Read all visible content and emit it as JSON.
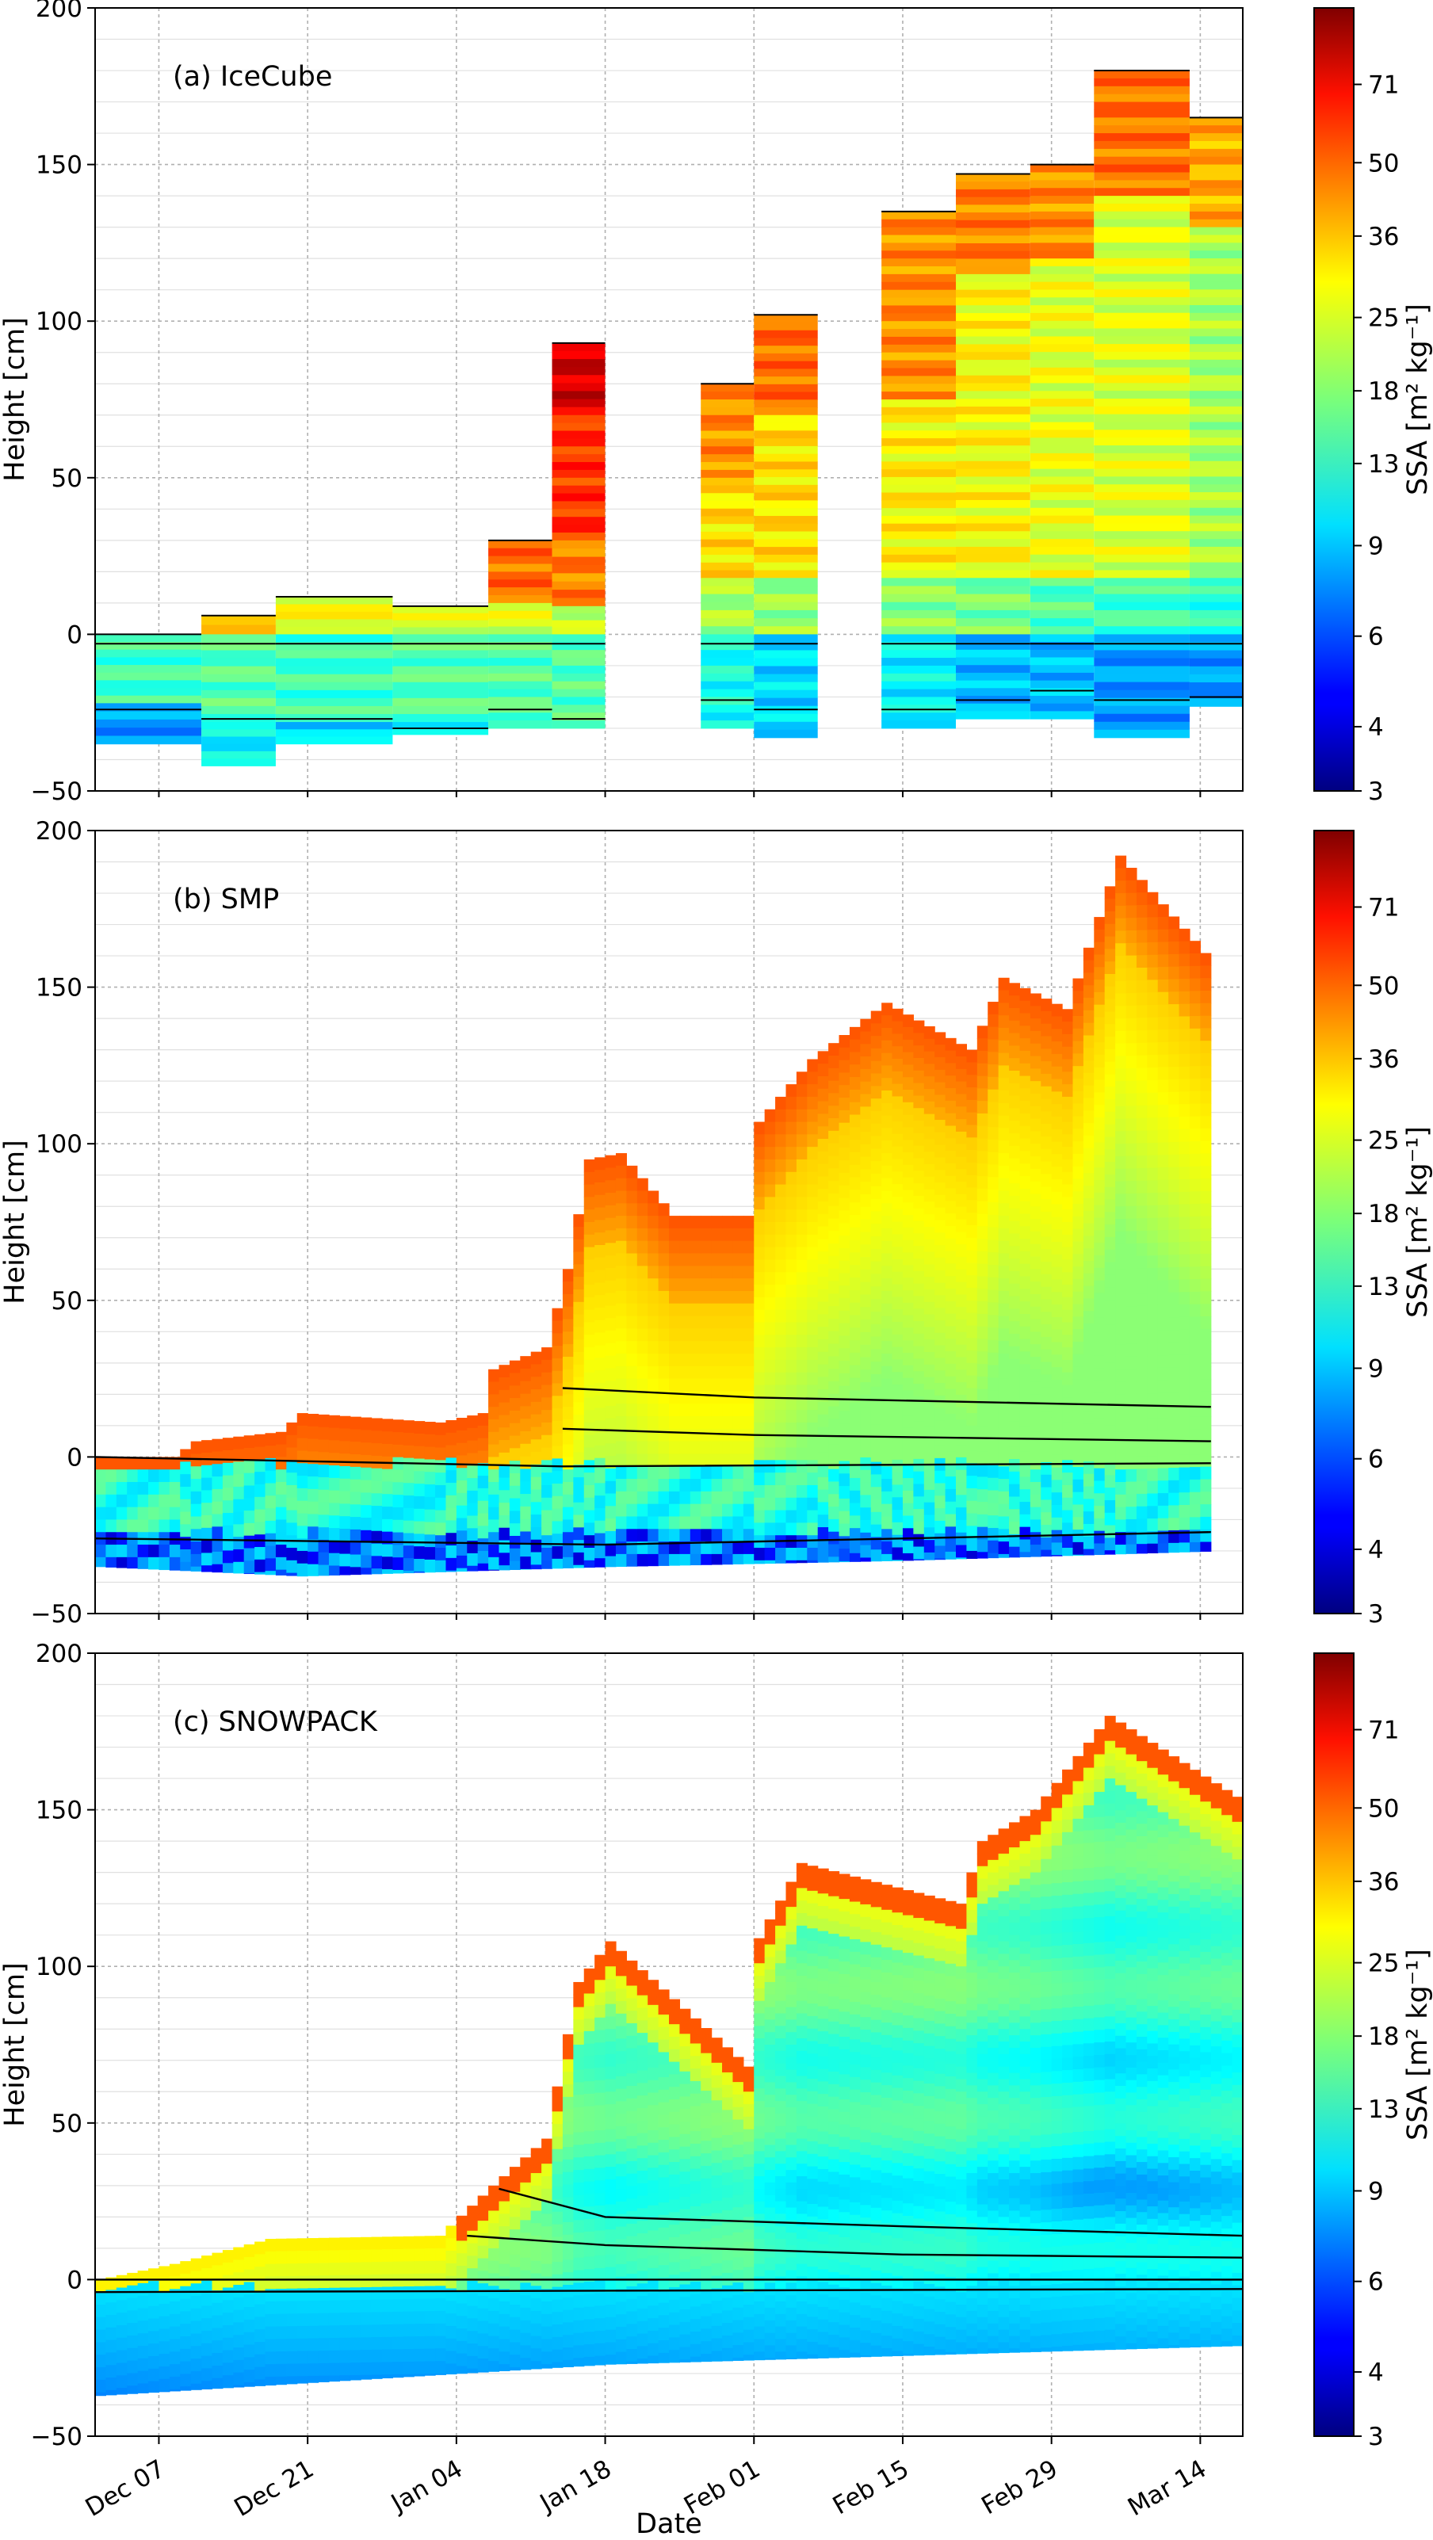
{
  "chart_data": [
    {
      "type": "heatmap",
      "panel_label": "(a) IceCube",
      "xlabel": "",
      "ylabel": "Height [cm]",
      "ylim": [
        -50,
        200
      ],
      "yticks": [
        "200",
        "150",
        "100",
        "50",
        "0",
        "−50"
      ],
      "colorbar_label": "SSA [m² kg⁻¹]",
      "colorbar_ticks": [
        "71",
        "50",
        "36",
        "25",
        "18",
        "13",
        "9",
        "6",
        "4",
        "3"
      ],
      "grid": true,
      "columns": [
        {
          "start": "2019-12-01",
          "end": "2019-12-11",
          "top": 0,
          "bottom": -35,
          "layers": [
            {
              "from": 0,
              "to": -22,
              "ssa": 14
            },
            {
              "from": -22,
              "to": -35,
              "ssa": 8
            }
          ],
          "horizons": [
            -3,
            -24
          ]
        },
        {
          "start": "2019-12-11",
          "end": "2019-12-18",
          "top": 6,
          "bottom": -42,
          "layers": [
            {
              "from": 6,
              "to": 0,
              "ssa": 30
            },
            {
              "from": 0,
              "to": -28,
              "ssa": 15
            },
            {
              "from": -28,
              "to": -42,
              "ssa": 11
            }
          ],
          "horizons": [
            -3,
            -27
          ]
        },
        {
          "start": "2019-12-18",
          "end": "2019-12-29",
          "top": 12,
          "bottom": -35,
          "layers": [
            {
              "from": 12,
              "to": 0,
              "ssa": 26
            },
            {
              "from": 0,
              "to": -28,
              "ssa": 14
            },
            {
              "from": -28,
              "to": -35,
              "ssa": 10
            }
          ],
          "horizons": [
            -3,
            -27
          ]
        },
        {
          "start": "2019-12-29",
          "end": "2020-01-07",
          "top": 9,
          "bottom": -32,
          "layers": [
            {
              "from": 9,
              "to": 0,
              "ssa": 24
            },
            {
              "from": 0,
              "to": -28,
              "ssa": 15
            },
            {
              "from": -28,
              "to": -32,
              "ssa": 10
            }
          ],
          "horizons": [
            -3,
            -30
          ]
        },
        {
          "start": "2020-01-07",
          "end": "2020-01-13",
          "top": 30,
          "bottom": -30,
          "layers": [
            {
              "from": 30,
              "to": 10,
              "ssa": 45
            },
            {
              "from": 10,
              "to": 0,
              "ssa": 24
            },
            {
              "from": 0,
              "to": -30,
              "ssa": 15
            }
          ],
          "horizons": [
            -3,
            -24
          ]
        },
        {
          "start": "2020-01-13",
          "end": "2020-01-18",
          "top": 93,
          "bottom": -30,
          "layers": [
            {
              "from": 93,
              "to": 70,
              "ssa": 75
            },
            {
              "from": 70,
              "to": 30,
              "ssa": 55
            },
            {
              "from": 30,
              "to": 9,
              "ssa": 42
            },
            {
              "from": 9,
              "to": 0,
              "ssa": 22
            },
            {
              "from": 0,
              "to": -30,
              "ssa": 15
            }
          ],
          "horizons": [
            -3,
            -27
          ]
        },
        {
          "start": "2020-01-27",
          "end": "2020-02-01",
          "top": 80,
          "bottom": -30,
          "layers": [
            {
              "from": 80,
              "to": 50,
              "ssa": 40
            },
            {
              "from": 50,
              "to": 18,
              "ssa": 30
            },
            {
              "from": 18,
              "to": 0,
              "ssa": 20
            },
            {
              "from": 0,
              "to": -30,
              "ssa": 12
            }
          ],
          "horizons": [
            -3,
            -21
          ]
        },
        {
          "start": "2020-02-01",
          "end": "2020-02-07",
          "top": 102,
          "bottom": -33,
          "layers": [
            {
              "from": 102,
              "to": 70,
              "ssa": 45
            },
            {
              "from": 70,
              "to": 18,
              "ssa": 30
            },
            {
              "from": 18,
              "to": 0,
              "ssa": 19
            },
            {
              "from": 0,
              "to": -33,
              "ssa": 10
            }
          ],
          "horizons": [
            -3,
            -24
          ]
        },
        {
          "start": "2020-02-13",
          "end": "2020-02-20",
          "top": 135,
          "bottom": -30,
          "layers": [
            {
              "from": 135,
              "to": 75,
              "ssa": 40
            },
            {
              "from": 75,
              "to": 18,
              "ssa": 28
            },
            {
              "from": 18,
              "to": 0,
              "ssa": 18
            },
            {
              "from": 0,
              "to": -30,
              "ssa": 11
            }
          ],
          "horizons": [
            -3,
            -24
          ]
        },
        {
          "start": "2020-02-20",
          "end": "2020-02-27",
          "top": 147,
          "bottom": -27,
          "layers": [
            {
              "from": 147,
              "to": 115,
              "ssa": 42
            },
            {
              "from": 115,
              "to": 18,
              "ssa": 27
            },
            {
              "from": 18,
              "to": 0,
              "ssa": 17
            },
            {
              "from": 0,
              "to": -27,
              "ssa": 9
            }
          ],
          "horizons": [
            -3,
            -21
          ]
        },
        {
          "start": "2020-02-27",
          "end": "2020-03-04",
          "top": 150,
          "bottom": -27,
          "layers": [
            {
              "from": 150,
              "to": 120,
              "ssa": 40
            },
            {
              "from": 120,
              "to": 18,
              "ssa": 25
            },
            {
              "from": 18,
              "to": 0,
              "ssa": 15
            },
            {
              "from": 0,
              "to": -27,
              "ssa": 9
            }
          ],
          "horizons": [
            -3,
            -18
          ]
        },
        {
          "start": "2020-03-04",
          "end": "2020-03-13",
          "top": 180,
          "bottom": -33,
          "layers": [
            {
              "from": 180,
              "to": 140,
              "ssa": 44
            },
            {
              "from": 140,
              "to": 18,
              "ssa": 24
            },
            {
              "from": 18,
              "to": 0,
              "ssa": 14
            },
            {
              "from": 0,
              "to": -33,
              "ssa": 8
            }
          ],
          "horizons": [
            -3,
            -21
          ]
        },
        {
          "start": "2020-03-13",
          "end": "2020-03-18",
          "top": 165,
          "bottom": -23,
          "layers": [
            {
              "from": 165,
              "to": 130,
              "ssa": 36
            },
            {
              "from": 130,
              "to": 18,
              "ssa": 20
            },
            {
              "from": 18,
              "to": 0,
              "ssa": 13
            },
            {
              "from": 0,
              "to": -23,
              "ssa": 8
            }
          ],
          "horizons": [
            -3,
            -20
          ]
        }
      ]
    },
    {
      "type": "heatmap",
      "panel_label": "(b) SMP",
      "xlabel": "",
      "ylabel": "Height [cm]",
      "ylim": [
        -50,
        200
      ],
      "yticks": [
        "200",
        "150",
        "100",
        "50",
        "0",
        "−50"
      ],
      "colorbar_label": "SSA [m² kg⁻¹]",
      "colorbar_ticks": [
        "71",
        "50",
        "36",
        "25",
        "18",
        "13",
        "9",
        "6",
        "4",
        "3"
      ],
      "grid": true,
      "surface_profile": [
        {
          "date": "2019-12-01",
          "height": 0
        },
        {
          "date": "2019-12-08",
          "height": 0
        },
        {
          "date": "2019-12-10",
          "height": 5
        },
        {
          "date": "2019-12-18",
          "height": 8
        },
        {
          "date": "2019-12-20",
          "height": 14
        },
        {
          "date": "2020-01-02",
          "height": 11
        },
        {
          "date": "2020-01-06",
          "height": 14
        },
        {
          "date": "2020-01-07",
          "height": 28
        },
        {
          "date": "2020-01-12",
          "height": 35
        },
        {
          "date": "2020-01-14",
          "height": 60
        },
        {
          "date": "2020-01-16",
          "height": 95
        },
        {
          "date": "2020-01-19",
          "height": 97
        },
        {
          "date": "2020-01-24",
          "height": 77
        },
        {
          "date": "2020-01-31",
          "height": 77
        },
        {
          "date": "2020-02-01",
          "height": 107
        },
        {
          "date": "2020-02-06",
          "height": 127
        },
        {
          "date": "2020-02-13",
          "height": 145
        },
        {
          "date": "2020-02-21",
          "height": 130
        },
        {
          "date": "2020-02-24",
          "height": 153
        },
        {
          "date": "2020-03-01",
          "height": 143
        },
        {
          "date": "2020-03-06",
          "height": 192
        },
        {
          "date": "2020-03-15",
          "height": 157
        }
      ],
      "bottom_profile": [
        {
          "date": "2019-12-01",
          "depth": -35
        },
        {
          "date": "2019-12-20",
          "depth": -38
        },
        {
          "date": "2020-01-18",
          "depth": -35
        },
        {
          "date": "2020-02-15",
          "depth": -33
        },
        {
          "date": "2020-03-15",
          "depth": -30
        }
      ],
      "horizons": [
        {
          "name": "upper",
          "points": [
            {
              "date": "2020-01-14",
              "height": 22
            },
            {
              "date": "2020-02-01",
              "height": 19
            },
            {
              "date": "2020-03-15",
              "height": 16
            }
          ]
        },
        {
          "name": "middle",
          "points": [
            {
              "date": "2020-01-14",
              "height": 9
            },
            {
              "date": "2020-02-01",
              "height": 7
            },
            {
              "date": "2020-03-15",
              "height": 5
            }
          ]
        },
        {
          "name": "surface-0",
          "points": [
            {
              "date": "2019-12-01",
              "height": 0
            },
            {
              "date": "2020-01-14",
              "height": -3
            },
            {
              "date": "2020-03-15",
              "height": -2
            }
          ]
        },
        {
          "name": "lower",
          "points": [
            {
              "date": "2019-12-01",
              "height": -26
            },
            {
              "date": "2020-01-18",
              "height": -28
            },
            {
              "date": "2020-03-15",
              "height": -24
            }
          ]
        }
      ]
    },
    {
      "type": "heatmap",
      "panel_label": "(c) SNOWPACK",
      "xlabel": "Date",
      "ylabel": "Height [cm]",
      "ylim": [
        -50,
        200
      ],
      "yticks": [
        "200",
        "150",
        "100",
        "50",
        "0",
        "−50"
      ],
      "xticks": [
        "Dec 07",
        "Dec 21",
        "Jan 04",
        "Jan 18",
        "Feb 01",
        "Feb 15",
        "Feb 29",
        "Mar 14"
      ],
      "colorbar_label": "SSA [m² kg⁻¹]",
      "colorbar_ticks": [
        "71",
        "50",
        "36",
        "25",
        "18",
        "13",
        "9",
        "6",
        "4",
        "3"
      ],
      "grid": true,
      "surface_profile": [
        {
          "date": "2019-12-01",
          "height": 0
        },
        {
          "date": "2019-12-08",
          "height": 5
        },
        {
          "date": "2019-12-17",
          "height": 13
        },
        {
          "date": "2020-01-02",
          "height": 14
        },
        {
          "date": "2020-01-07",
          "height": 30
        },
        {
          "date": "2020-01-12",
          "height": 45
        },
        {
          "date": "2020-01-15",
          "height": 95
        },
        {
          "date": "2020-01-18",
          "height": 108
        },
        {
          "date": "2020-01-31",
          "height": 68
        },
        {
          "date": "2020-02-01",
          "height": 109
        },
        {
          "date": "2020-02-05",
          "height": 133
        },
        {
          "date": "2020-02-20",
          "height": 120
        },
        {
          "date": "2020-02-22",
          "height": 140
        },
        {
          "date": "2020-02-27",
          "height": 150
        },
        {
          "date": "2020-03-05",
          "height": 180
        },
        {
          "date": "2020-03-18",
          "height": 152
        }
      ],
      "bottom_profile": [
        {
          "date": "2019-12-01",
          "depth": -37
        },
        {
          "date": "2020-01-18",
          "depth": -27
        },
        {
          "date": "2020-03-18",
          "depth": -21
        }
      ],
      "horizons": [
        {
          "name": "upper",
          "points": [
            {
              "date": "2020-01-08",
              "height": 29
            },
            {
              "date": "2020-01-18",
              "height": 20
            },
            {
              "date": "2020-02-15",
              "height": 17
            },
            {
              "date": "2020-03-18",
              "height": 14
            }
          ]
        },
        {
          "name": "middle",
          "points": [
            {
              "date": "2020-01-05",
              "height": 14
            },
            {
              "date": "2020-01-18",
              "height": 11
            },
            {
              "date": "2020-02-15",
              "height": 8
            },
            {
              "date": "2020-03-18",
              "height": 7
            }
          ]
        },
        {
          "name": "surface-0",
          "points": [
            {
              "date": "2019-12-01",
              "height": 0
            },
            {
              "date": "2020-03-18",
              "height": 0
            }
          ]
        },
        {
          "name": "lower",
          "points": [
            {
              "date": "2019-12-01",
              "height": -4
            },
            {
              "date": "2020-03-18",
              "height": -3
            }
          ]
        }
      ]
    }
  ]
}
